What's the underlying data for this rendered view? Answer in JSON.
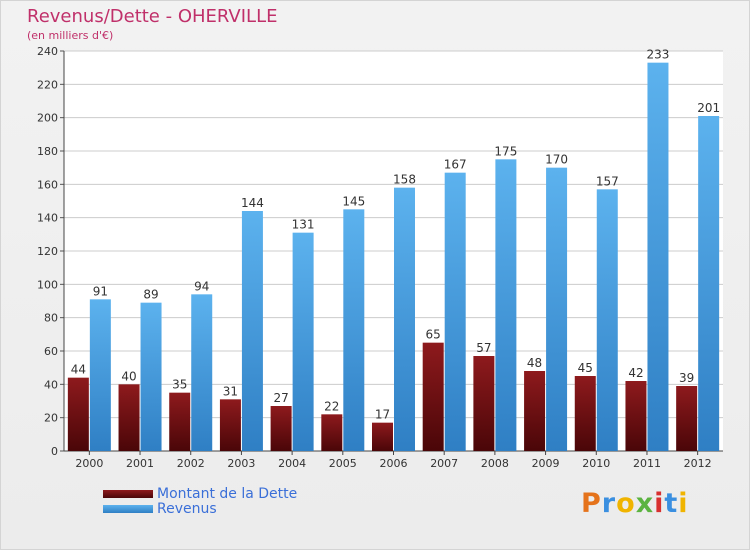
{
  "title": "Revenus/Dette - OHERVILLE",
  "subtitle": "(en milliers d'€)",
  "logo_text": "Proxiti",
  "colors": {
    "dette": "#7a0f12",
    "revenus": "#4aa3e6",
    "title": "#c0306a",
    "legend_text": "#3a6fd8"
  },
  "legend": {
    "position": "bottom-left",
    "items": [
      {
        "label": "Montant de la Dette",
        "color": "#7a0f12"
      },
      {
        "label": "Revenus",
        "color": "#4aa3e6"
      }
    ]
  },
  "chart_data": {
    "type": "bar",
    "title": "Revenus/Dette - OHERVILLE",
    "subtitle": "(en milliers d'€)",
    "xlabel": "",
    "ylabel": "",
    "ylim": [
      0,
      240
    ],
    "yticks": [
      0,
      20,
      40,
      60,
      80,
      100,
      120,
      140,
      160,
      180,
      200,
      220,
      240
    ],
    "grid": true,
    "categories": [
      "2000",
      "2001",
      "2002",
      "2003",
      "2004",
      "2005",
      "2006",
      "2007",
      "2008",
      "2009",
      "2010",
      "2011",
      "2012"
    ],
    "series": [
      {
        "name": "Montant de la Dette",
        "values": [
          44,
          40,
          35,
          31,
          27,
          22,
          17,
          65,
          57,
          48,
          45,
          42,
          39
        ]
      },
      {
        "name": "Revenus",
        "values": [
          91,
          89,
          94,
          144,
          131,
          145,
          158,
          167,
          175,
          170,
          157,
          233,
          201
        ]
      }
    ]
  }
}
